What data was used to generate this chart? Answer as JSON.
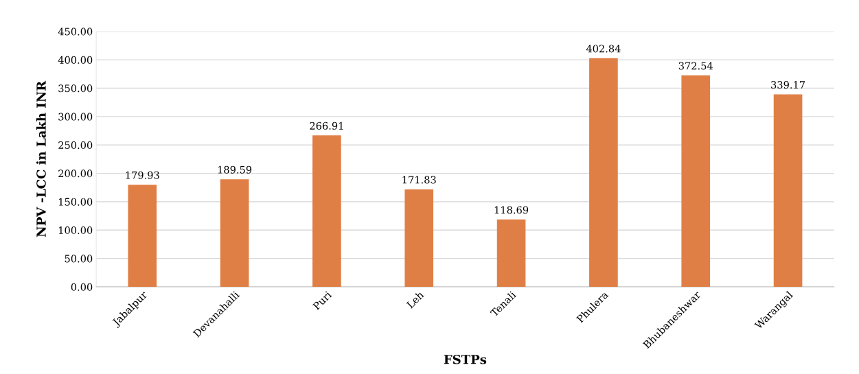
{
  "chart_data": {
    "type": "bar",
    "xlabel": "FSTPs",
    "ylabel": "NPV -LCC in Lakh INR",
    "categories": [
      "Jabalpur",
      "Devanahalli",
      "Puri",
      "Leh",
      "Tenali",
      "Phulera",
      "Bhubaneshwar",
      "Warangal"
    ],
    "values": [
      179.93,
      189.59,
      266.91,
      171.83,
      118.69,
      402.84,
      372.54,
      339.17
    ],
    "color": "#e07f45",
    "ylim": [
      0,
      450
    ],
    "yticks": [
      {
        "value": 0,
        "label": "0.00"
      },
      {
        "value": 50,
        "label": "50.00"
      },
      {
        "value": 100,
        "label": "100.00"
      },
      {
        "value": 150,
        "label": "150.00"
      },
      {
        "value": 200,
        "label": "200.00"
      },
      {
        "value": 250,
        "label": "250.00"
      },
      {
        "value": 300,
        "label": "300.00"
      },
      {
        "value": 350,
        "label": "350.00"
      },
      {
        "value": 400,
        "label": "400.00"
      },
      {
        "value": 450,
        "label": "450.00"
      }
    ],
    "grid": "y",
    "data_labels": true,
    "legend": false
  }
}
